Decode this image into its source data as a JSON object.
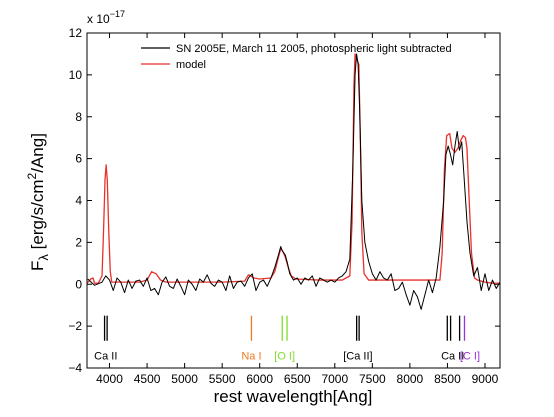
{
  "chart_data": {
    "type": "line",
    "title": "",
    "xlabel": "rest wavelength[Ang]",
    "ylabel": {
      "main": "F",
      "sub": "λ",
      "rest1": " [erg/s/cm",
      "sup": "2",
      "rest2": "/Ang]"
    },
    "xlim": [
      3700,
      9200
    ],
    "ylim": [
      -4,
      12
    ],
    "y_multiplier": {
      "base": "x 10",
      "exponent": "−17"
    },
    "x_ticks": [
      4000,
      4500,
      5000,
      5500,
      6000,
      6500,
      7000,
      7500,
      8000,
      8500,
      9000
    ],
    "y_ticks": [
      -4,
      -2,
      0,
      2,
      4,
      6,
      8,
      10,
      12
    ],
    "grid": false,
    "legend_position": "top-right",
    "series": [
      {
        "name": "SN 2005E, March 11 2005, photospheric light subtracted",
        "color": "#000000",
        "values": [
          [
            3710,
            0.25
          ],
          [
            3800,
            -0.05
          ],
          [
            3900,
            0.1
          ],
          [
            3950,
            0.4
          ],
          [
            4000,
            0.2
          ],
          [
            4050,
            -0.3
          ],
          [
            4100,
            0.3
          ],
          [
            4150,
            0.1
          ],
          [
            4200,
            -0.4
          ],
          [
            4250,
            0.2
          ],
          [
            4300,
            -0.2
          ],
          [
            4350,
            0.15
          ],
          [
            4400,
            0.2
          ],
          [
            4450,
            -0.1
          ],
          [
            4500,
            0.3
          ],
          [
            4550,
            -0.3
          ],
          [
            4600,
            -0.2
          ],
          [
            4650,
            -0.5
          ],
          [
            4700,
            0.1
          ],
          [
            4750,
            0.35
          ],
          [
            4800,
            -0.1
          ],
          [
            4850,
            -0.2
          ],
          [
            4900,
            0.25
          ],
          [
            4950,
            -0.1
          ],
          [
            5000,
            -0.5
          ],
          [
            5050,
            0.2
          ],
          [
            5100,
            0.0
          ],
          [
            5150,
            -0.3
          ],
          [
            5200,
            0.25
          ],
          [
            5250,
            0.1
          ],
          [
            5300,
            0.45
          ],
          [
            5350,
            0.05
          ],
          [
            5400,
            -0.1
          ],
          [
            5450,
            0.2
          ],
          [
            5500,
            0.1
          ],
          [
            5550,
            -0.3
          ],
          [
            5600,
            0.4
          ],
          [
            5650,
            -0.2
          ],
          [
            5700,
            0.1
          ],
          [
            5750,
            0.15
          ],
          [
            5800,
            -0.1
          ],
          [
            5850,
            0.3
          ],
          [
            5900,
            0.5
          ],
          [
            5950,
            -0.3
          ],
          [
            6000,
            0.1
          ],
          [
            6050,
            0.2
          ],
          [
            6100,
            -0.1
          ],
          [
            6150,
            0.3
          ],
          [
            6200,
            0.8
          ],
          [
            6250,
            1.4
          ],
          [
            6280,
            1.8
          ],
          [
            6300,
            1.6
          ],
          [
            6340,
            1.4
          ],
          [
            6370,
            1.0
          ],
          [
            6400,
            0.5
          ],
          [
            6450,
            0.2
          ],
          [
            6500,
            0.3
          ],
          [
            6550,
            0.0
          ],
          [
            6600,
            0.3
          ],
          [
            6650,
            0.2
          ],
          [
            6700,
            0.4
          ],
          [
            6750,
            -0.1
          ],
          [
            6800,
            0.3
          ],
          [
            6850,
            0.2
          ],
          [
            6900,
            0.1
          ],
          [
            6950,
            0.2
          ],
          [
            7000,
            0.1
          ],
          [
            7050,
            0.3
          ],
          [
            7100,
            0.4
          ],
          [
            7150,
            0.6
          ],
          [
            7200,
            1.2
          ],
          [
            7240,
            5.5
          ],
          [
            7270,
            10.0
          ],
          [
            7290,
            11.0
          ],
          [
            7310,
            10.5
          ],
          [
            7330,
            8.5
          ],
          [
            7360,
            4.0
          ],
          [
            7400,
            2.0
          ],
          [
            7450,
            1.1
          ],
          [
            7500,
            0.5
          ],
          [
            7550,
            0.2
          ],
          [
            7600,
            0.6
          ],
          [
            7650,
            0.3
          ],
          [
            7700,
            0.2
          ],
          [
            7750,
            0.5
          ],
          [
            7800,
            -0.3
          ],
          [
            7850,
            -0.2
          ],
          [
            7900,
            0.1
          ],
          [
            7950,
            -0.5
          ],
          [
            8000,
            -1.0
          ],
          [
            8050,
            -0.3
          ],
          [
            8100,
            -0.6
          ],
          [
            8150,
            -1.2
          ],
          [
            8200,
            -0.5
          ],
          [
            8250,
            0.2
          ],
          [
            8300,
            -0.4
          ],
          [
            8350,
            0.3
          ],
          [
            8400,
            1.8
          ],
          [
            8450,
            4.0
          ],
          [
            8480,
            6.2
          ],
          [
            8510,
            6.6
          ],
          [
            8540,
            6.2
          ],
          [
            8570,
            5.7
          ],
          [
            8600,
            6.6
          ],
          [
            8630,
            7.3
          ],
          [
            8660,
            6.4
          ],
          [
            8690,
            6.8
          ],
          [
            8720,
            5.2
          ],
          [
            8760,
            3.0
          ],
          [
            8800,
            1.5
          ],
          [
            8850,
            0.4
          ],
          [
            8900,
            0.8
          ],
          [
            8950,
            -0.3
          ],
          [
            9000,
            0.5
          ],
          [
            9050,
            -0.3
          ],
          [
            9100,
            0.2
          ],
          [
            9150,
            -0.2
          ],
          [
            9200,
            0.1
          ]
        ]
      },
      {
        "name": "model",
        "color": "#e8312b",
        "values": [
          [
            3700,
            0.05
          ],
          [
            3750,
            0.25
          ],
          [
            3780,
            0.3
          ],
          [
            3800,
            0.05
          ],
          [
            3850,
            0.05
          ],
          [
            3900,
            0.4
          ],
          [
            3920,
            2.5
          ],
          [
            3940,
            5.0
          ],
          [
            3955,
            5.7
          ],
          [
            3970,
            5.0
          ],
          [
            3990,
            2.5
          ],
          [
            4010,
            0.6
          ],
          [
            4030,
            0.1
          ],
          [
            4400,
            0.1
          ],
          [
            4500,
            0.2
          ],
          [
            4560,
            0.6
          ],
          [
            4620,
            0.5
          ],
          [
            4680,
            0.2
          ],
          [
            4750,
            0.1
          ],
          [
            5000,
            0.1
          ],
          [
            5500,
            0.1
          ],
          [
            5800,
            0.15
          ],
          [
            5850,
            0.45
          ],
          [
            5880,
            0.4
          ],
          [
            5920,
            0.3
          ],
          [
            6000,
            0.25
          ],
          [
            6150,
            0.3
          ],
          [
            6200,
            0.6
          ],
          [
            6250,
            1.3
          ],
          [
            6280,
            1.7
          ],
          [
            6310,
            1.55
          ],
          [
            6340,
            1.3
          ],
          [
            6380,
            0.8
          ],
          [
            6420,
            0.4
          ],
          [
            6480,
            0.25
          ],
          [
            6800,
            0.2
          ],
          [
            7100,
            0.2
          ],
          [
            7200,
            0.4
          ],
          [
            7230,
            3.0
          ],
          [
            7255,
            9.5
          ],
          [
            7270,
            11.0
          ],
          [
            7290,
            10.8
          ],
          [
            7320,
            10.5
          ],
          [
            7340,
            7.0
          ],
          [
            7360,
            2.5
          ],
          [
            7390,
            0.5
          ],
          [
            7450,
            0.2
          ],
          [
            8300,
            0.2
          ],
          [
            8400,
            0.2
          ],
          [
            8430,
            1.5
          ],
          [
            8460,
            5.5
          ],
          [
            8490,
            7.1
          ],
          [
            8530,
            7.2
          ],
          [
            8560,
            6.5
          ],
          [
            8600,
            6.3
          ],
          [
            8640,
            6.5
          ],
          [
            8680,
            6.9
          ],
          [
            8710,
            7.1
          ],
          [
            8740,
            7.0
          ],
          [
            8760,
            6.5
          ],
          [
            8790,
            4.0
          ],
          [
            8820,
            1.5
          ],
          [
            8860,
            0.3
          ],
          [
            8900,
            0.2
          ],
          [
            8950,
            0.15
          ],
          [
            9000,
            0.1
          ],
          [
            9100,
            0.05
          ],
          [
            9200,
            0.05
          ]
        ]
      }
    ],
    "line_markers": [
      {
        "label": "Ca II",
        "color": "#000000",
        "wavelengths": [
          3934,
          3968
        ],
        "label_x": 3950
      },
      {
        "label": "Na I",
        "color": "#f07a1e",
        "wavelengths": [
          5890
        ],
        "label_x": 5890
      },
      {
        "label": "[O I]",
        "color": "#7fdd30",
        "wavelengths": [
          6300,
          6364
        ],
        "label_x": 6332
      },
      {
        "label": "[Ca II]",
        "color": "#000000",
        "wavelengths": [
          7291,
          7324
        ],
        "label_x": 7308
      },
      {
        "label": "Ca II",
        "color": "#000000",
        "wavelengths": [
          8498,
          8542,
          8662
        ],
        "label_x": 8570
      },
      {
        "label": "[C I]",
        "color": "#9b30d8",
        "wavelengths": [
          8727
        ],
        "label_x": 8800
      }
    ]
  }
}
